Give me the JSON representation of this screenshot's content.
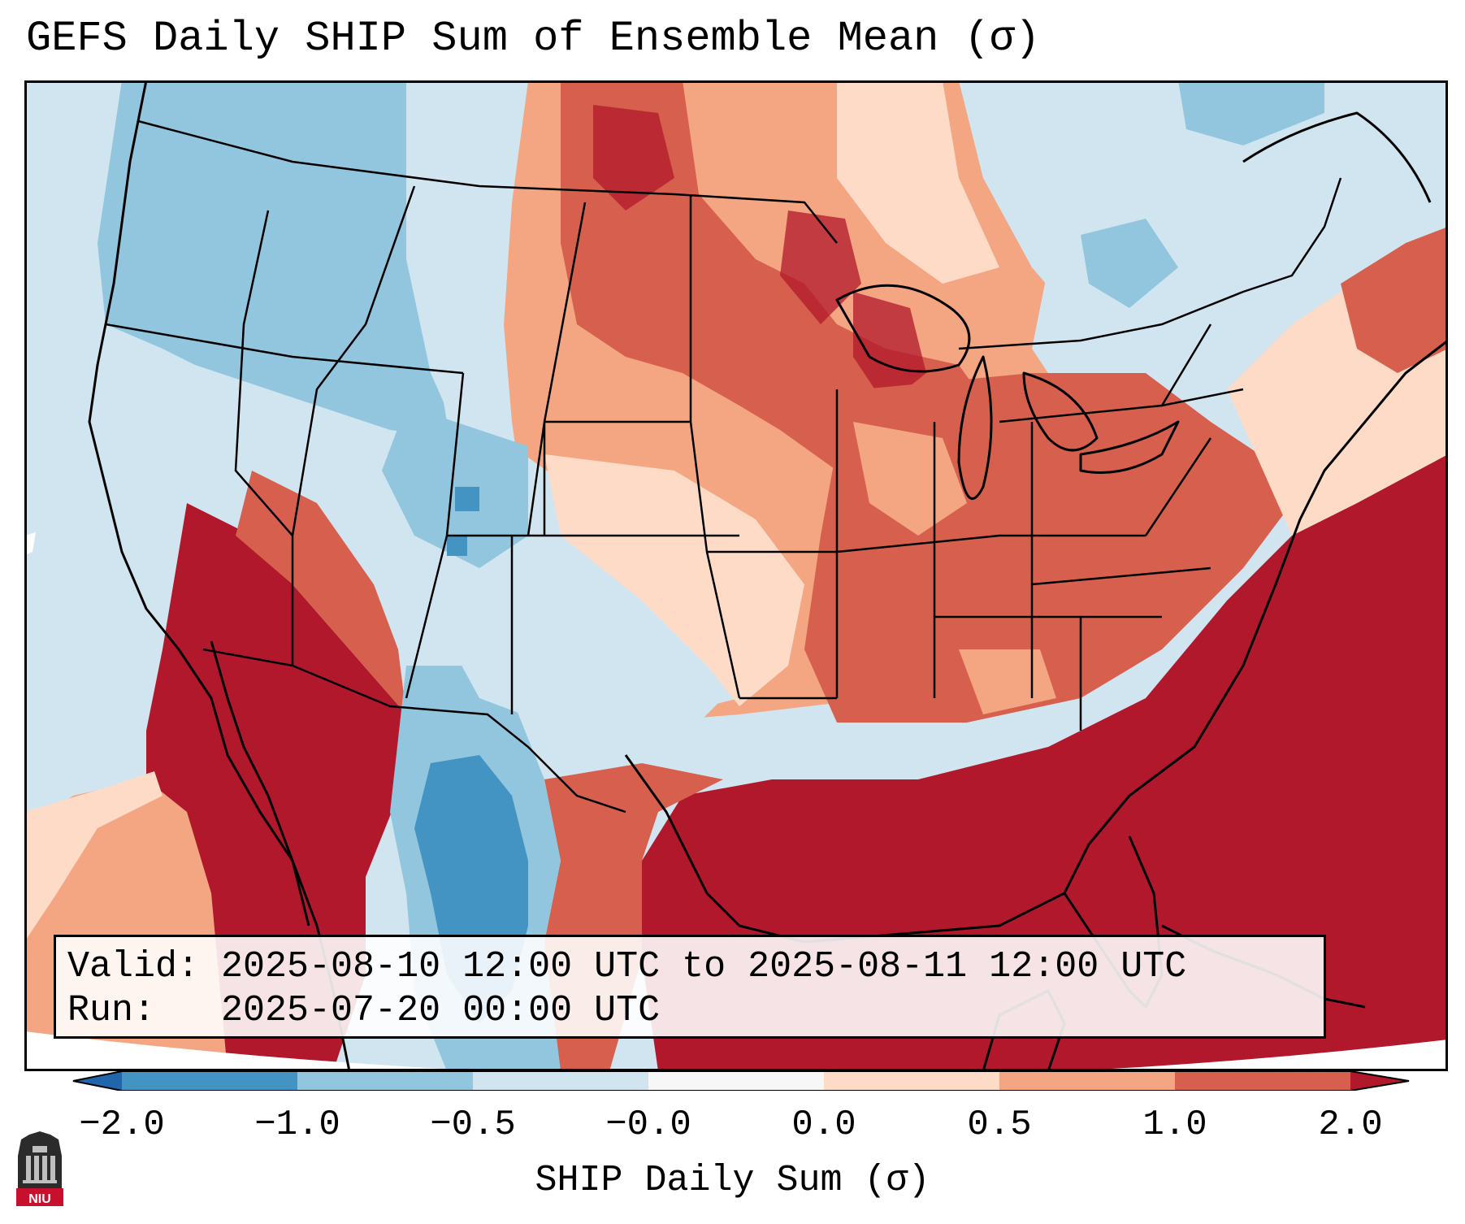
{
  "title": "GEFS Daily SHIP Sum of Ensemble Mean (σ)",
  "info": {
    "valid_line": "Valid: 2025-08-10 12:00 UTC to 2025-08-11 12:00 UTC",
    "run_line": "Run:   2025-07-20 00:00 UTC"
  },
  "colorbar": {
    "label": "SHIP Daily Sum (σ)",
    "ticks": [
      "−2.0",
      "−1.0",
      "−0.5",
      "−0.0",
      "0.0",
      "0.5",
      "1.0",
      "2.0"
    ],
    "bins": [
      {
        "range": "< -2.0",
        "color": "#2166ac"
      },
      {
        "range": "-2.0 to -1.0",
        "color": "#4393c3"
      },
      {
        "range": "-1.0 to -0.5",
        "color": "#92c5de"
      },
      {
        "range": "-0.5 to -0.0",
        "color": "#d1e5f0"
      },
      {
        "range": "-0.0 to 0.0",
        "color": "#f7f7f7"
      },
      {
        "range": "0.0 to 0.5",
        "color": "#fddbc7"
      },
      {
        "range": "0.5 to 1.0",
        "color": "#f4a582"
      },
      {
        "range": "1.0 to 2.0",
        "color": "#d6604d"
      },
      {
        "range": "> 2.0",
        "color": "#b2182b"
      }
    ]
  },
  "map": {
    "projection": "Lambert conformal, CONUS",
    "ocean_color": "#d1e5f0",
    "border_color": "#000000"
  },
  "logo": {
    "text": "NIU"
  }
}
